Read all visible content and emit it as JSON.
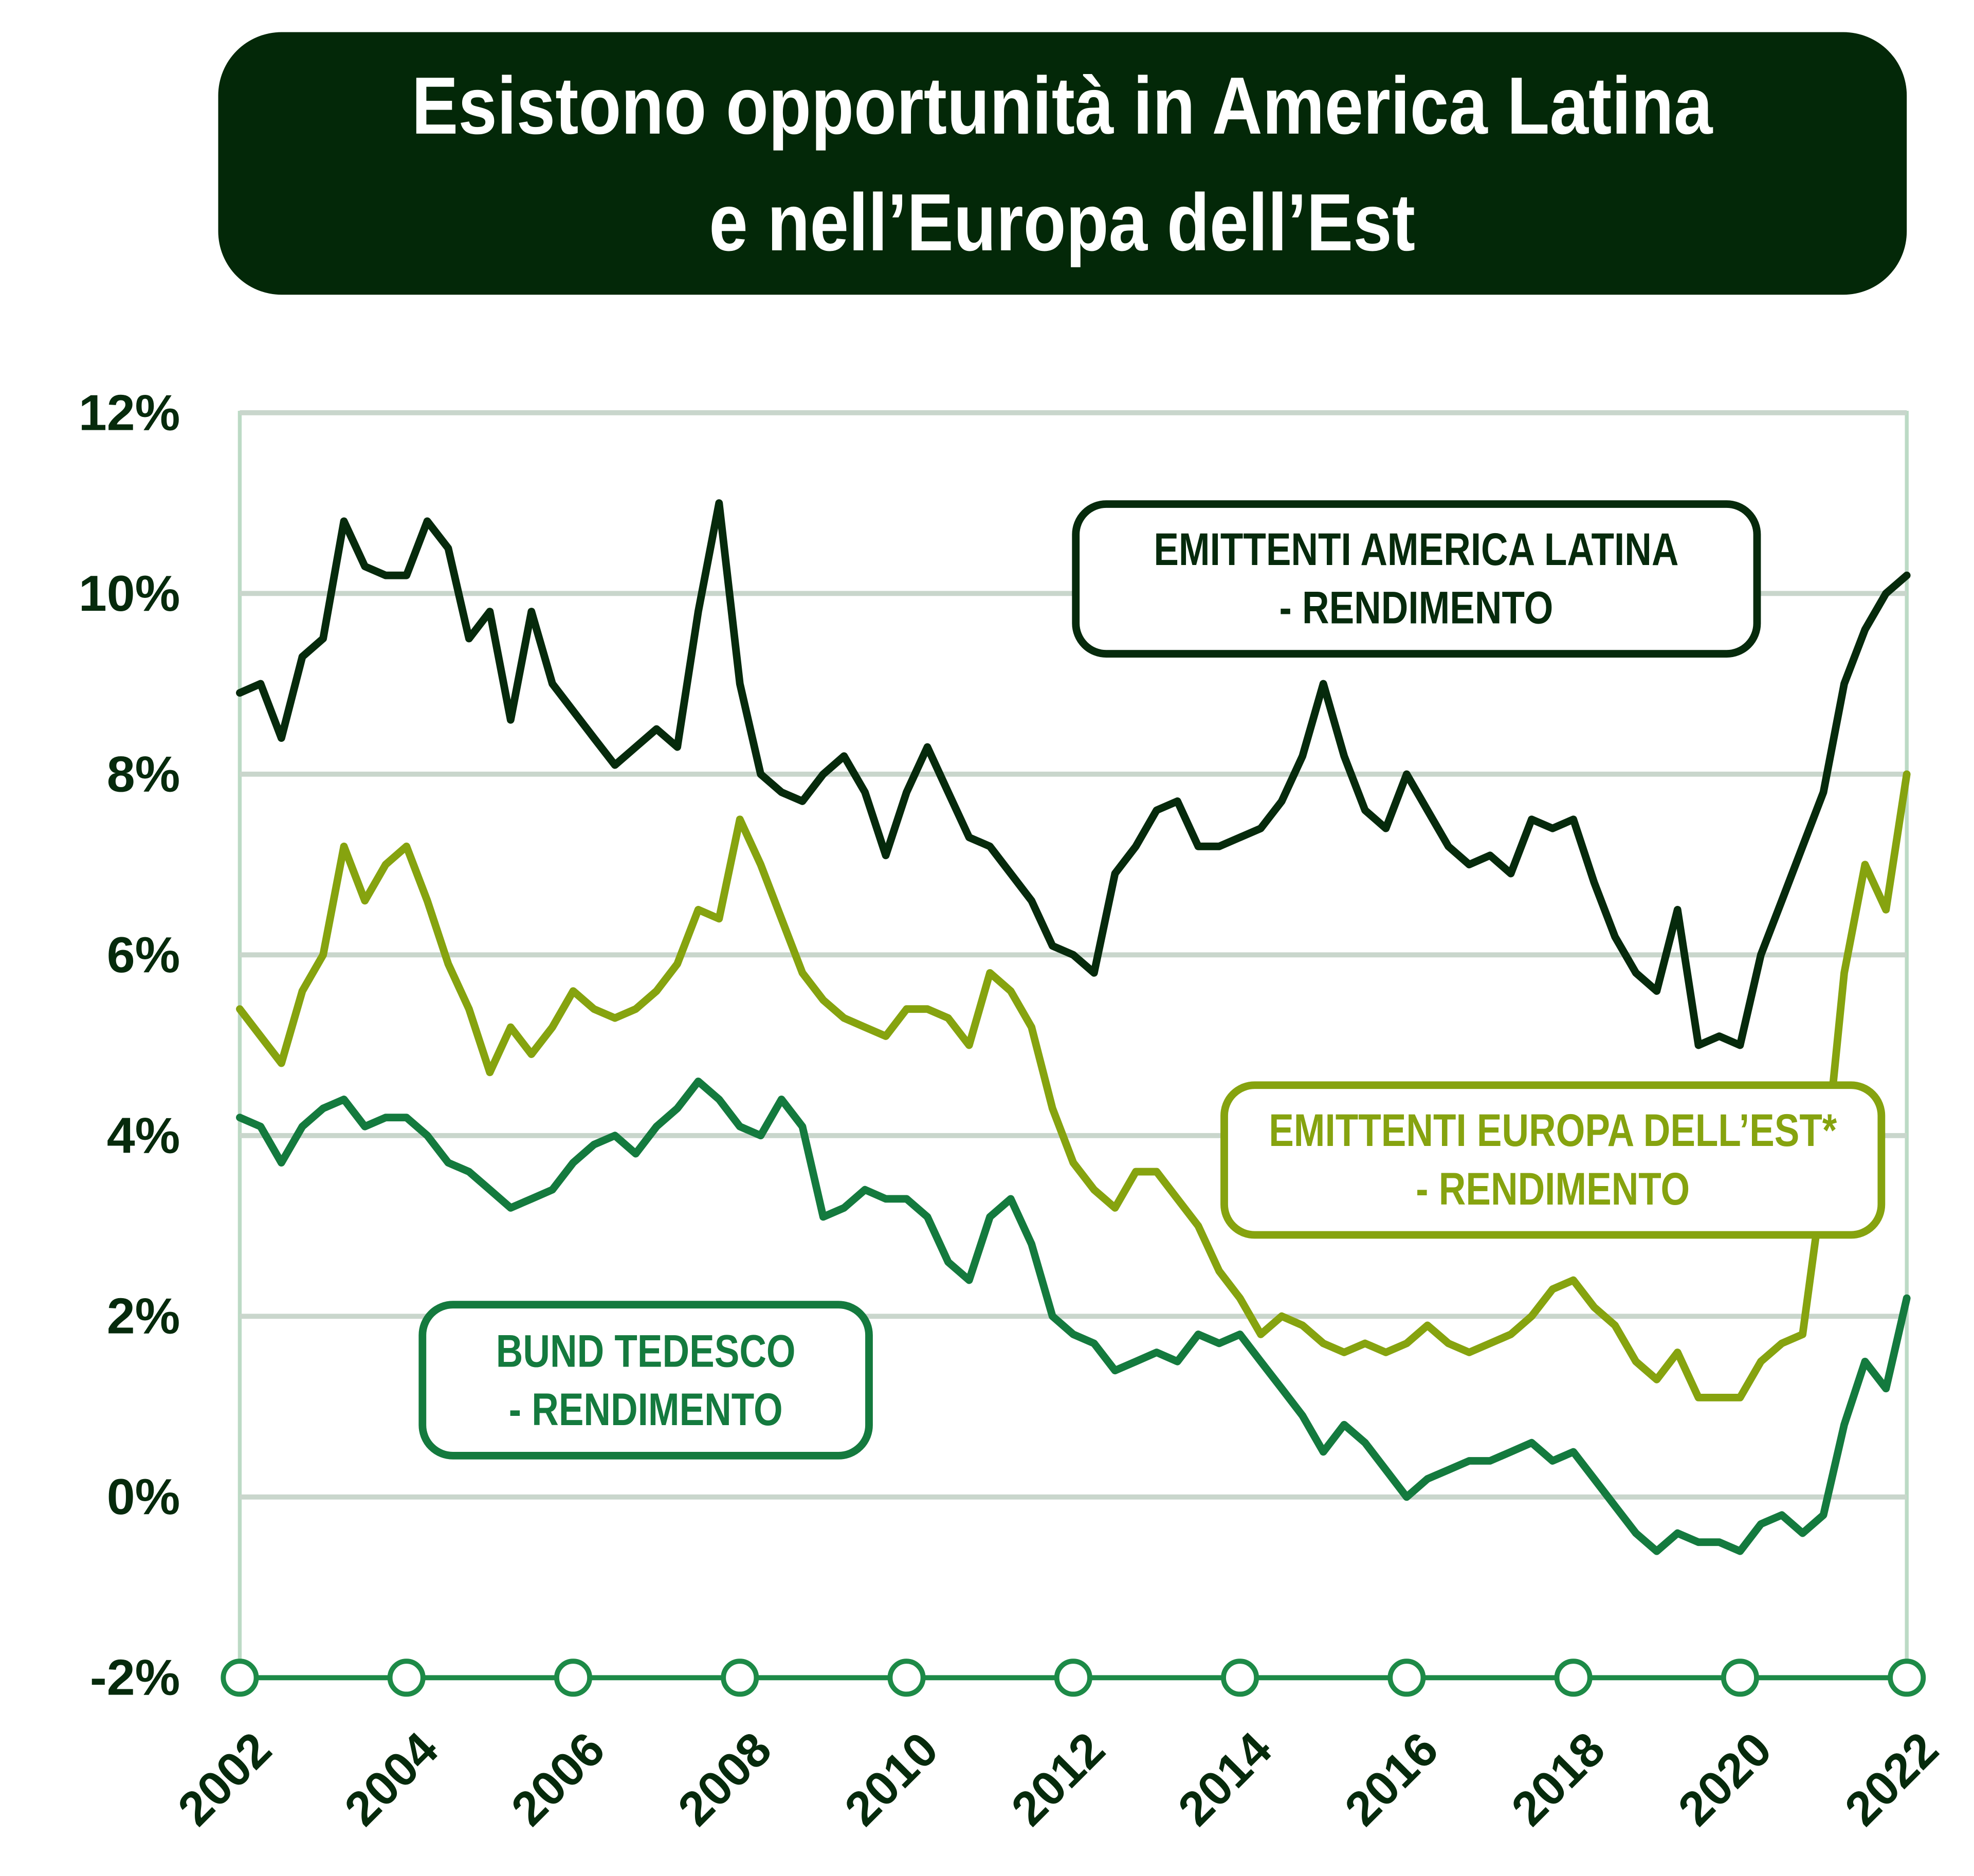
{
  "chart_data": {
    "type": "line",
    "title": "Esistono opportunità in America Latina\ne nell’Europa dell’Est",
    "x": [
      2002,
      2002.25,
      2002.5,
      2002.75,
      2003,
      2003.25,
      2003.5,
      2003.75,
      2004,
      2004.25,
      2004.5,
      2004.75,
      2005,
      2005.25,
      2005.5,
      2005.75,
      2006,
      2006.25,
      2006.5,
      2006.75,
      2007,
      2007.25,
      2007.5,
      2007.75,
      2008,
      2008.25,
      2008.5,
      2008.75,
      2009,
      2009.25,
      2009.5,
      2009.75,
      2010,
      2010.25,
      2010.5,
      2010.75,
      2011,
      2011.25,
      2011.5,
      2011.75,
      2012,
      2012.25,
      2012.5,
      2012.75,
      2013,
      2013.25,
      2013.5,
      2013.75,
      2014,
      2014.25,
      2014.5,
      2014.75,
      2015,
      2015.25,
      2015.5,
      2015.75,
      2016,
      2016.25,
      2016.5,
      2016.75,
      2017,
      2017.25,
      2017.5,
      2017.75,
      2018,
      2018.25,
      2018.5,
      2018.75,
      2019,
      2019.25,
      2019.5,
      2019.75,
      2020,
      2020.25,
      2020.5,
      2020.75,
      2021,
      2021.25,
      2021.5,
      2021.75,
      2022
    ],
    "series": [
      {
        "name": "EMITTENTI AMERICA LATINA\n- RENDIMENTO",
        "color": "#062a0c",
        "values": [
          8.9,
          9.0,
          8.4,
          9.3,
          9.5,
          10.8,
          10.3,
          10.2,
          10.2,
          10.8,
          10.5,
          9.5,
          9.8,
          8.6,
          9.8,
          9.0,
          8.7,
          8.4,
          8.1,
          8.3,
          8.5,
          8.3,
          9.8,
          11.0,
          9.0,
          8.0,
          7.8,
          7.7,
          8.0,
          8.2,
          7.8,
          7.1,
          7.8,
          8.3,
          7.8,
          7.3,
          7.2,
          6.9,
          6.6,
          6.1,
          6.0,
          5.8,
          6.9,
          7.2,
          7.6,
          7.7,
          7.2,
          7.2,
          7.3,
          7.4,
          7.7,
          8.2,
          9.0,
          8.2,
          7.6,
          7.4,
          8.0,
          7.6,
          7.2,
          7.0,
          7.1,
          6.9,
          7.5,
          7.4,
          7.5,
          6.8,
          6.2,
          5.8,
          5.6,
          6.5,
          5.0,
          5.1,
          5.0,
          6.0,
          6.6,
          7.2,
          7.8,
          9.0,
          9.6,
          10.0,
          10.2
        ]
      },
      {
        "name": "EMITTENTI EUROPA DELL’EST*\n- RENDIMENTO",
        "color": "#86a30f",
        "values": [
          5.4,
          5.1,
          4.8,
          5.6,
          6.0,
          7.2,
          6.6,
          7.0,
          7.2,
          6.6,
          5.9,
          5.4,
          4.7,
          5.2,
          4.9,
          5.2,
          5.6,
          5.4,
          5.3,
          5.4,
          5.6,
          5.9,
          6.5,
          6.4,
          7.5,
          7.0,
          6.4,
          5.8,
          5.5,
          5.3,
          5.2,
          5.1,
          5.4,
          5.4,
          5.3,
          5.0,
          5.8,
          5.6,
          5.2,
          4.3,
          3.7,
          3.4,
          3.2,
          3.6,
          3.6,
          3.3,
          3.0,
          2.5,
          2.2,
          1.8,
          2.0,
          1.9,
          1.7,
          1.6,
          1.7,
          1.6,
          1.7,
          1.9,
          1.7,
          1.6,
          1.7,
          1.8,
          2.0,
          2.3,
          2.4,
          2.1,
          1.9,
          1.5,
          1.3,
          1.6,
          1.1,
          1.1,
          1.1,
          1.5,
          1.7,
          1.8,
          3.5,
          5.8,
          7.0,
          6.5,
          8.0
        ]
      },
      {
        "name": "BUND TEDESCO\n- RENDIMENTO",
        "color": "#147a3e",
        "values": [
          4.2,
          4.1,
          3.7,
          4.1,
          4.3,
          4.4,
          4.1,
          4.2,
          4.2,
          4.0,
          3.7,
          3.6,
          3.4,
          3.2,
          3.3,
          3.4,
          3.7,
          3.9,
          4.0,
          3.8,
          4.1,
          4.3,
          4.6,
          4.4,
          4.1,
          4.0,
          4.4,
          4.1,
          3.1,
          3.2,
          3.4,
          3.3,
          3.3,
          3.1,
          2.6,
          2.4,
          3.1,
          3.3,
          2.8,
          2.0,
          1.8,
          1.7,
          1.4,
          1.5,
          1.6,
          1.5,
          1.8,
          1.7,
          1.8,
          1.5,
          1.2,
          0.9,
          0.5,
          0.8,
          0.6,
          0.3,
          0.0,
          0.2,
          0.3,
          0.4,
          0.4,
          0.5,
          0.6,
          0.4,
          0.5,
          0.2,
          -0.1,
          -0.4,
          -0.6,
          -0.4,
          -0.5,
          -0.5,
          -0.6,
          -0.3,
          -0.2,
          -0.4,
          -0.2,
          0.8,
          1.5,
          1.2,
          2.2
        ]
      }
    ],
    "xlim": [
      2002,
      2022
    ],
    "xticks": [
      2002,
      2004,
      2006,
      2008,
      2010,
      2012,
      2014,
      2016,
      2018,
      2020,
      2022
    ],
    "ylim": [
      -2,
      12
    ],
    "yticks": [
      {
        "value": -2,
        "label": "-2%"
      },
      {
        "value": 0,
        "label": "0%"
      },
      {
        "value": 2,
        "label": "2%"
      },
      {
        "value": 4,
        "label": "4%"
      },
      {
        "value": 6,
        "label": "6%"
      },
      {
        "value": 8,
        "label": "8%"
      },
      {
        "value": 10,
        "label": "10%"
      },
      {
        "value": 12,
        "label": "12%"
      }
    ],
    "grid": true
  }
}
